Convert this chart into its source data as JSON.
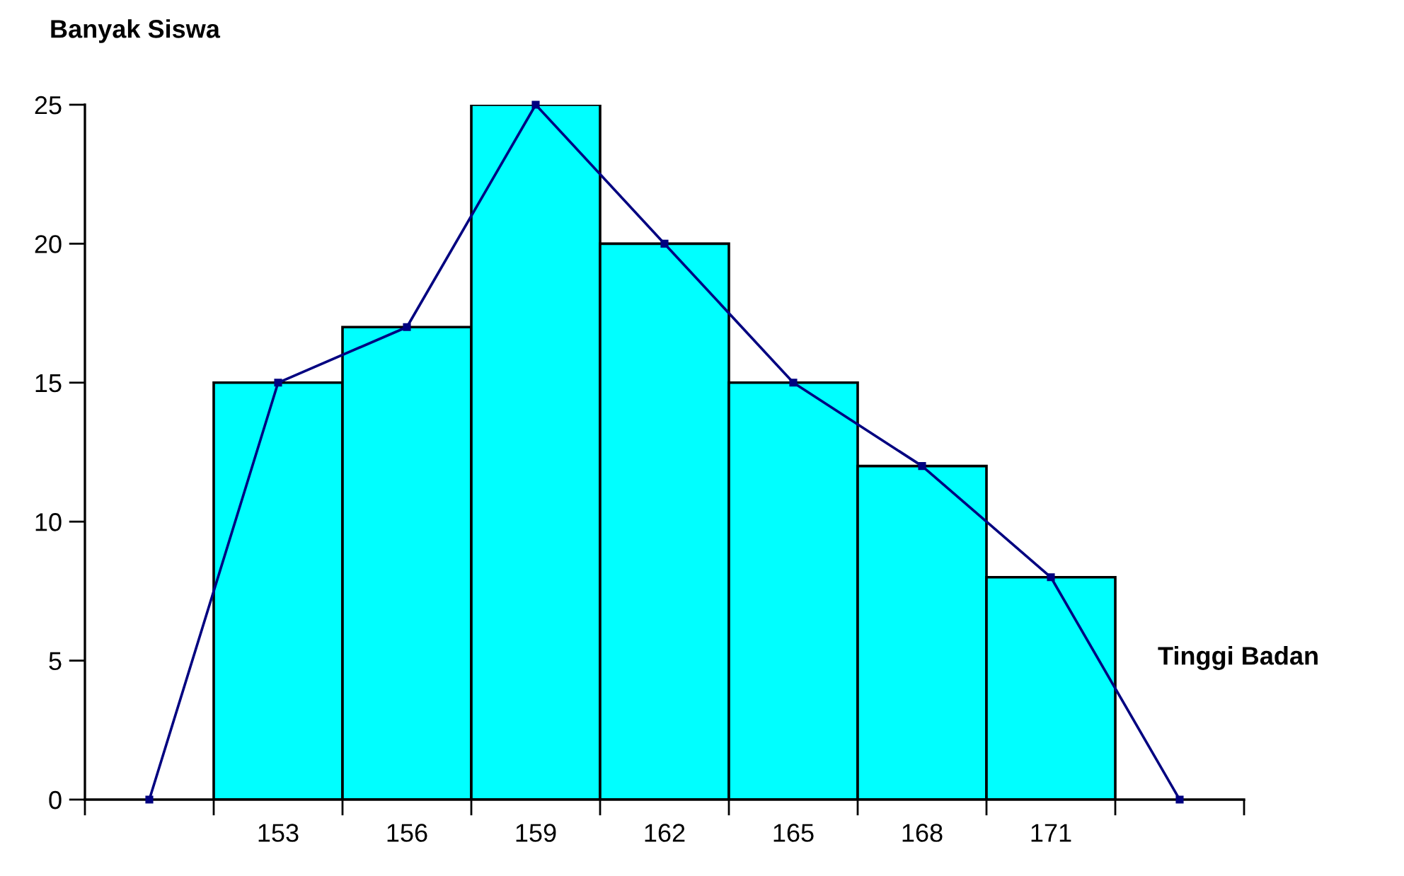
{
  "chart_data": {
    "type": "histogram",
    "xlabel": "Tinggi Badan",
    "ylabel": "Banyak Siswa",
    "bins": [
      151.5,
      154.5,
      157.5,
      160.5,
      163.5,
      166.5,
      169.5,
      172.5
    ],
    "values": [
      15,
      17,
      25,
      20,
      15,
      12,
      8
    ],
    "color": "#00ffff",
    "series": [
      {
        "type": "line",
        "color": "#000080",
        "x": [
          150,
          153,
          156,
          159,
          162,
          165,
          168,
          171,
          174
        ],
        "values": [
          0,
          15,
          17,
          25,
          20,
          15,
          12,
          8,
          0
        ],
        "marker": "square",
        "line_style": "solid"
      }
    ],
    "xlim": [
      148.5,
      175.5
    ],
    "xticks": [
      {
        "value": 148.5,
        "label": null
      },
      {
        "value": 151.5,
        "label": null
      },
      {
        "value": 154.5,
        "label": null
      },
      {
        "value": 157.5,
        "label": null
      },
      {
        "value": 160.5,
        "label": null
      },
      {
        "value": 163.5,
        "label": null
      },
      {
        "value": 166.5,
        "label": null
      },
      {
        "value": 169.5,
        "label": null
      },
      {
        "value": 172.5,
        "label": null
      },
      {
        "value": 175.5,
        "label": null
      },
      {
        "value": 153,
        "label": "153"
      },
      {
        "value": 156,
        "label": "156"
      },
      {
        "value": 159,
        "label": "159"
      },
      {
        "value": 162,
        "label": "162"
      },
      {
        "value": 165,
        "label": "165"
      },
      {
        "value": 168,
        "label": "168"
      },
      {
        "value": 171,
        "label": "171"
      }
    ],
    "ylim": [
      0,
      25
    ],
    "yticks": [
      0,
      5,
      10,
      15,
      20,
      25
    ],
    "grid": false
  }
}
